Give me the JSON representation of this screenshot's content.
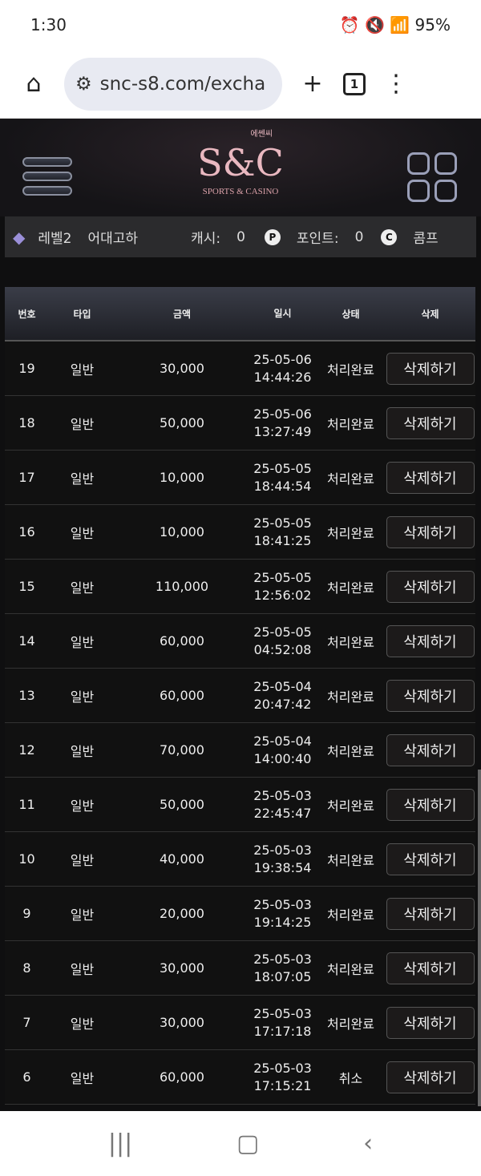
{
  "status": {
    "time": "1:30",
    "battery": "95%"
  },
  "browser": {
    "url": "snc-s8.com/excha",
    "tab_count": "1"
  },
  "logo": {
    "main": "S&C",
    "korean": "에쎈씨",
    "sub": "SPORTS & CASINO"
  },
  "info": {
    "level": "레벨2",
    "username": "어대고하",
    "cash_label": "캐시:",
    "cash": "0",
    "point_icon": "P",
    "point_label": "포인트:",
    "point": "0",
    "comp_icon": "C",
    "comp_label": "콤프"
  },
  "table": {
    "headers": [
      "번호",
      "타입",
      "금액",
      "일시",
      "상태",
      "삭제"
    ],
    "rows": [
      {
        "no": "19",
        "type": "일반",
        "amount": "30,000",
        "date": "25-05-06",
        "time": "14:44:26",
        "status": "처리완료",
        "action": "삭제하기"
      },
      {
        "no": "18",
        "type": "일반",
        "amount": "50,000",
        "date": "25-05-06",
        "time": "13:27:49",
        "status": "처리완료",
        "action": "삭제하기"
      },
      {
        "no": "17",
        "type": "일반",
        "amount": "10,000",
        "date": "25-05-05",
        "time": "18:44:54",
        "status": "처리완료",
        "action": "삭제하기"
      },
      {
        "no": "16",
        "type": "일반",
        "amount": "10,000",
        "date": "25-05-05",
        "time": "18:41:25",
        "status": "처리완료",
        "action": "삭제하기"
      },
      {
        "no": "15",
        "type": "일반",
        "amount": "110,000",
        "date": "25-05-05",
        "time": "12:56:02",
        "status": "처리완료",
        "action": "삭제하기"
      },
      {
        "no": "14",
        "type": "일반",
        "amount": "60,000",
        "date": "25-05-05",
        "time": "04:52:08",
        "status": "처리완료",
        "action": "삭제하기"
      },
      {
        "no": "13",
        "type": "일반",
        "amount": "60,000",
        "date": "25-05-04",
        "time": "20:47:42",
        "status": "처리완료",
        "action": "삭제하기"
      },
      {
        "no": "12",
        "type": "일반",
        "amount": "70,000",
        "date": "25-05-04",
        "time": "14:00:40",
        "status": "처리완료",
        "action": "삭제하기"
      },
      {
        "no": "11",
        "type": "일반",
        "amount": "50,000",
        "date": "25-05-03",
        "time": "22:45:47",
        "status": "처리완료",
        "action": "삭제하기"
      },
      {
        "no": "10",
        "type": "일반",
        "amount": "40,000",
        "date": "25-05-03",
        "time": "19:38:54",
        "status": "처리완료",
        "action": "삭제하기"
      },
      {
        "no": "9",
        "type": "일반",
        "amount": "20,000",
        "date": "25-05-03",
        "time": "19:14:25",
        "status": "처리완료",
        "action": "삭제하기"
      },
      {
        "no": "8",
        "type": "일반",
        "amount": "30,000",
        "date": "25-05-03",
        "time": "18:07:05",
        "status": "처리완료",
        "action": "삭제하기"
      },
      {
        "no": "7",
        "type": "일반",
        "amount": "30,000",
        "date": "25-05-03",
        "time": "17:17:18",
        "status": "처리완료",
        "action": "삭제하기"
      },
      {
        "no": "6",
        "type": "일반",
        "amount": "60,000",
        "date": "25-05-03",
        "time": "17:15:21",
        "status": "취소",
        "action": "삭제하기"
      }
    ]
  }
}
